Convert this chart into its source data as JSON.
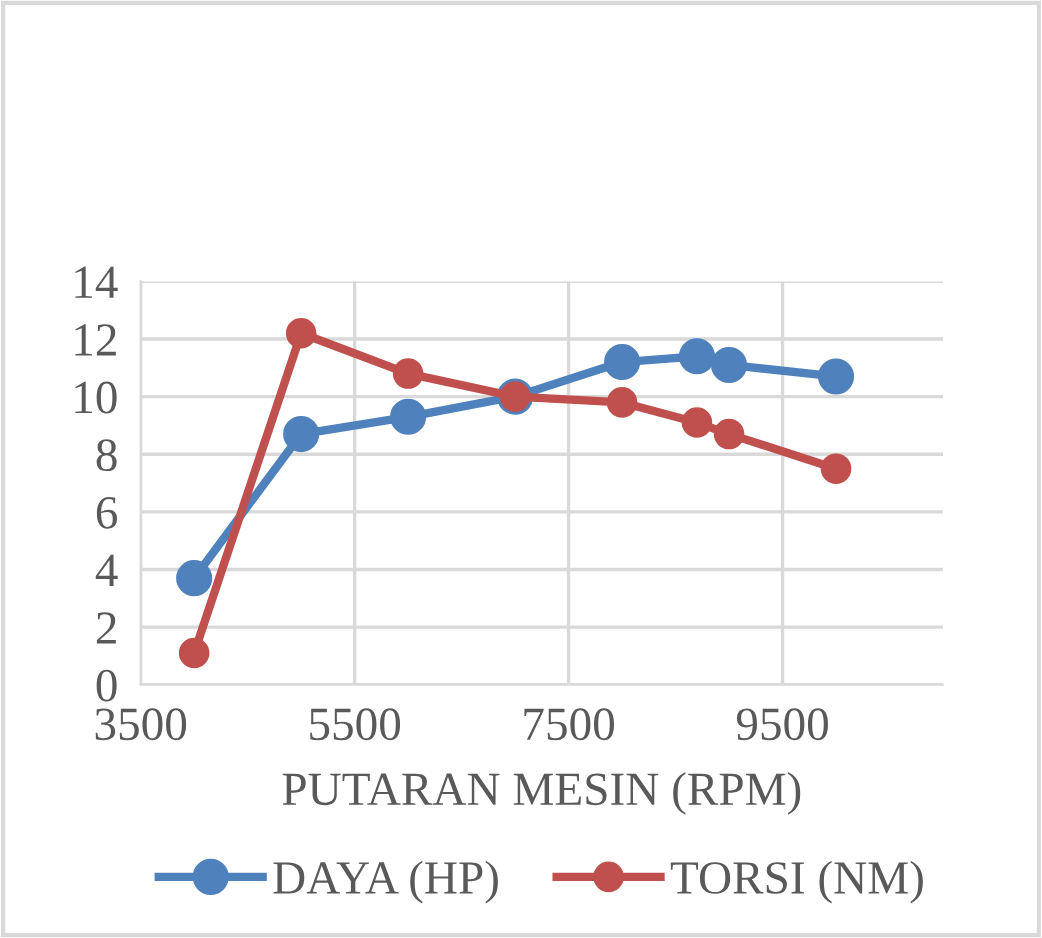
{
  "chart_data": {
    "type": "line",
    "xlabel": "PUTARAN MESIN (RPM)",
    "x": [
      4000,
      5000,
      6000,
      7000,
      8000,
      8700,
      9000,
      10000
    ],
    "series": [
      {
        "name": "DAYA (HP)",
        "color": "#4f81bd",
        "values": [
          3.7,
          8.7,
          9.3,
          10.0,
          11.2,
          11.4,
          11.1,
          10.7
        ]
      },
      {
        "name": "TORSI (NM)",
        "color": "#c0504d",
        "values": [
          1.1,
          12.2,
          10.8,
          10.0,
          9.8,
          9.1,
          8.7,
          7.5
        ]
      }
    ],
    "xlim": [
      3500,
      11000
    ],
    "xticks": [
      3500,
      5500,
      7500,
      9500
    ],
    "ylim": [
      0,
      14
    ],
    "yticks": [
      0,
      2,
      4,
      6,
      8,
      10,
      12,
      14
    ],
    "grid": true,
    "legend": "bottom",
    "marker": "circle",
    "line_style": "solid"
  }
}
